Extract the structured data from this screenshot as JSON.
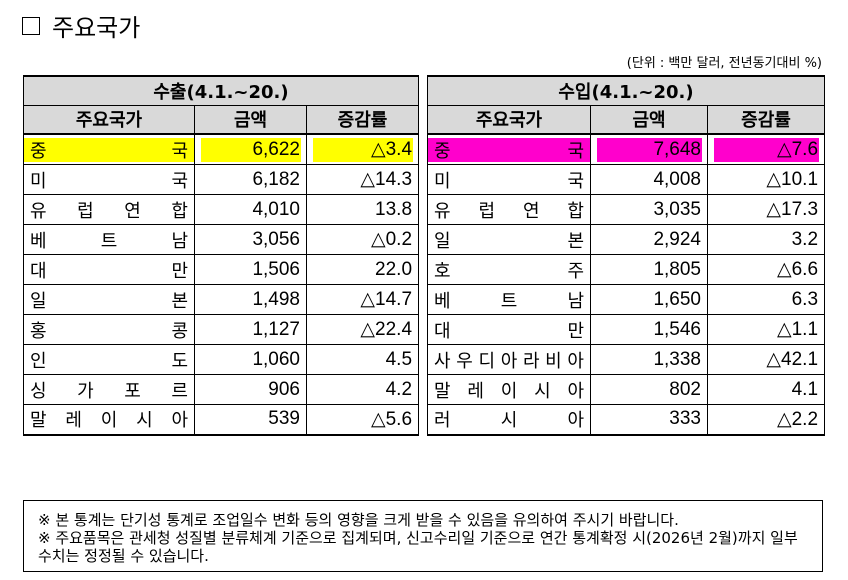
{
  "title": "주요국가",
  "unit_note": "(단위 : 백만 달러, 전년동기대비 %)",
  "export": {
    "header": "수출(4.1.~20.)",
    "columns": [
      "주요국가",
      "금액",
      "증감률"
    ],
    "rows": [
      {
        "country": "중국",
        "amount": "6,622",
        "rate": "△3.4"
      },
      {
        "country": "미국",
        "amount": "6,182",
        "rate": "△14.3"
      },
      {
        "country": "유럽연합",
        "amount": "4,010",
        "rate": "13.8"
      },
      {
        "country": "베트남",
        "amount": "3,056",
        "rate": "△0.2"
      },
      {
        "country": "대만",
        "amount": "1,506",
        "rate": "22.0"
      },
      {
        "country": "일본",
        "amount": "1,498",
        "rate": "△14.7"
      },
      {
        "country": "홍콩",
        "amount": "1,127",
        "rate": "△22.4"
      },
      {
        "country": "인도",
        "amount": "1,060",
        "rate": "4.5"
      },
      {
        "country": "싱가포르",
        "amount": "906",
        "rate": "4.2"
      },
      {
        "country": "말레이시아",
        "amount": "539",
        "rate": "△5.6"
      }
    ],
    "highlight_color": "#ffff00"
  },
  "import": {
    "header": "수입(4.1.~20.)",
    "columns": [
      "주요국가",
      "금액",
      "증감률"
    ],
    "rows": [
      {
        "country": "중국",
        "amount": "7,648",
        "rate": "△7.6"
      },
      {
        "country": "미국",
        "amount": "4,008",
        "rate": "△10.1"
      },
      {
        "country": "유럽연합",
        "amount": "3,035",
        "rate": "△17.3"
      },
      {
        "country": "일본",
        "amount": "2,924",
        "rate": "3.2"
      },
      {
        "country": "호주",
        "amount": "1,805",
        "rate": "△6.6"
      },
      {
        "country": "베트남",
        "amount": "1,650",
        "rate": "6.3"
      },
      {
        "country": "대만",
        "amount": "1,546",
        "rate": "△1.1"
      },
      {
        "country": "사우디아라비아",
        "amount": "1,338",
        "rate": "△42.1"
      },
      {
        "country": "말레이시아",
        "amount": "802",
        "rate": "4.1"
      },
      {
        "country": "러시아",
        "amount": "333",
        "rate": "△2.2"
      }
    ],
    "highlight_color": "#ff00cc"
  },
  "notes": [
    "※ 본 통계는 단기성 통계로 조업일수 변화 등의 영향을 크게 받을 수 있음을 유의하여 주시기 바랍니다.",
    "※ 주요품목은 관세청 성질별 분류체계 기준으로 집계되며, 신고수리일 기준으로 연간 통계확정 시(2026년 2월)까지 일부 수치는 정정될 수 있습니다."
  ]
}
